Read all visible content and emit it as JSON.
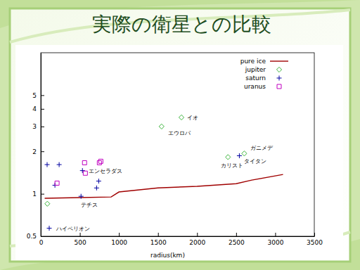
{
  "chart_data": {
    "type": "scatter",
    "title": "実際の衛星との比較",
    "x_label": "radius(km)",
    "xlim": [
      0,
      3500
    ],
    "xticks": [
      0,
      500,
      1000,
      1500,
      2000,
      2500,
      3000,
      3500
    ],
    "ylim": [
      0.5,
      10
    ],
    "yticks": [
      0.5,
      1,
      2,
      3,
      4,
      5
    ],
    "log": "y",
    "legend": "top-right",
    "series": [
      {
        "name": "pure ice",
        "type": "line",
        "color": "#a00000",
        "line_style": "solid",
        "x": [
          50,
          500,
          900,
          1000,
          1500,
          2000,
          2500,
          2700,
          3100
        ],
        "values": [
          0.93,
          0.94,
          0.95,
          1.03,
          1.1,
          1.13,
          1.18,
          1.25,
          1.37
        ]
      },
      {
        "name": "jupiter",
        "type": "scatter",
        "marker": "diamond",
        "color": "#3cb43c",
        "x": [
          84,
          1546,
          1800,
          2396,
          2604
        ],
        "values": [
          0.85,
          3.0,
          3.48,
          1.82,
          1.93
        ],
        "labels": [
          null,
          "エウロパ",
          "イオ",
          "カリスト",
          "ガニメデ"
        ]
      },
      {
        "name": "saturn",
        "type": "scatter",
        "marker": "plus",
        "color": "#0000a0",
        "x": [
          81,
          235,
          181,
          533,
          515,
          714,
          741,
          108,
          2541
        ],
        "values": [
          1.61,
          1.61,
          1.15,
          1.46,
          0.96,
          1.1,
          1.23,
          0.57,
          1.86
        ],
        "labels": [
          null,
          null,
          null,
          "エンセラダス",
          "テチス",
          null,
          null,
          "ハイペリオン",
          "タイタン"
        ]
      },
      {
        "name": "uranus",
        "type": "scatter",
        "marker": "square",
        "color": "#c000c0",
        "x": [
          208,
          560,
          570,
          750,
          768
        ],
        "values": [
          1.19,
          1.66,
          1.4,
          1.66,
          1.7
        ]
      }
    ]
  }
}
